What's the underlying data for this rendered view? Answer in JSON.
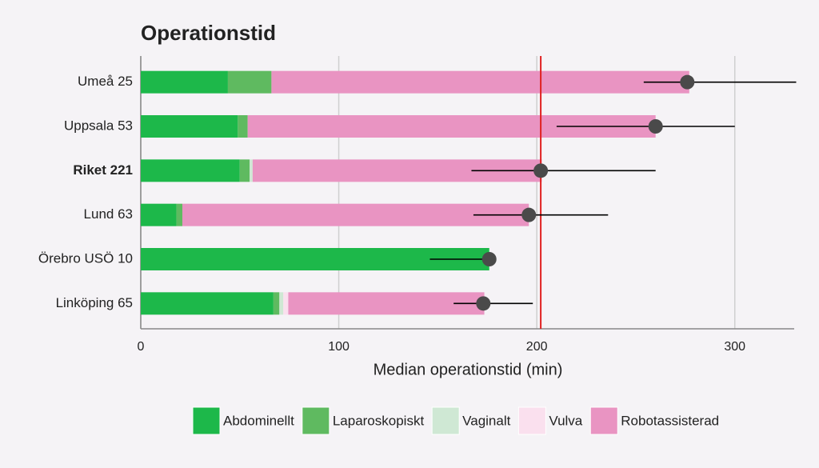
{
  "chart_data": {
    "type": "bar",
    "orientation": "horizontal",
    "stacked": true,
    "title": "Operationstid",
    "x_label": "Median operationstid (min)",
    "categories": [
      "Umeå 25",
      "Uppsala 53",
      "Riket 221",
      "Lund 63",
      "Örebro USÖ 10",
      "Linköping 65"
    ],
    "highlight_index": 2,
    "series": [
      {
        "name": "Abdominellt",
        "color": "#1db84a",
        "values": [
          44,
          49,
          50,
          18,
          176,
          67
        ]
      },
      {
        "name": "Laparoskopiskt",
        "color": "#5fba60",
        "values": [
          22,
          5,
          5,
          3,
          0,
          3
        ]
      },
      {
        "name": "Vaginalt",
        "color": "#cfe8d4",
        "values": [
          0,
          0,
          1.5,
          0,
          0,
          2
        ]
      },
      {
        "name": "Vulva",
        "color": "#fae0ee",
        "values": [
          0,
          0,
          0,
          0,
          0,
          2.5
        ]
      },
      {
        "name": "Robotassisterad",
        "color": "#e994c2",
        "values": [
          211,
          206,
          146,
          175,
          0,
          99
        ]
      }
    ],
    "median": [
      276,
      260,
      202,
      196,
      176,
      173
    ],
    "low": [
      254,
      210,
      167,
      168,
      146,
      158
    ],
    "high": [
      331,
      300,
      260,
      236,
      176,
      198
    ],
    "reference_line": 202,
    "reference_color": "#e02020",
    "xlim": [
      0,
      330
    ],
    "xticks": [
      0,
      100,
      200,
      300
    ],
    "grid": true,
    "legend": "bottom"
  }
}
